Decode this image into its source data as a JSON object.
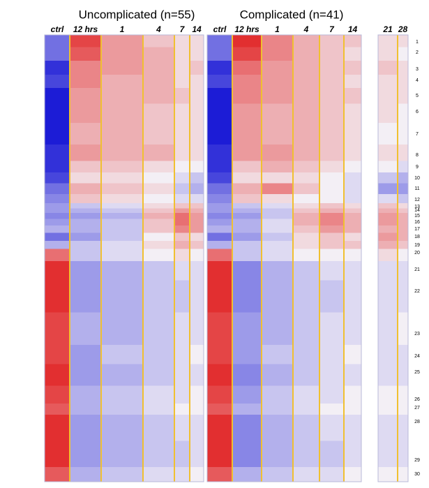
{
  "chart_data": {
    "type": "heatmap",
    "zlim": [
      -1,
      1
    ],
    "colors": [
      "#1c1cd6",
      "#f3eff5",
      "#e01a1a"
    ],
    "rows": [
      1,
      2,
      3,
      4,
      5,
      6,
      7,
      8,
      9,
      10,
      11,
      12,
      13,
      14,
      15,
      16,
      17,
      18,
      19,
      20,
      21,
      22,
      23,
      24,
      25,
      26,
      27,
      28,
      29,
      30
    ],
    "panels": [
      {
        "title": "Uncomplicated (n=55)",
        "columns": [
          "ctrl",
          "12 hrs",
          "1",
          "4",
          "7",
          "14"
        ],
        "values": [
          [
            -0.6,
            0.8,
            0.4,
            0.2,
            0.1,
            0.1
          ],
          [
            -0.6,
            0.7,
            0.4,
            0.3,
            0.1,
            0.1
          ],
          [
            -0.9,
            0.5,
            0.4,
            0.3,
            0.1,
            0.2
          ],
          [
            -0.8,
            0.5,
            0.3,
            0.3,
            0.1,
            0.1
          ],
          [
            -1,
            0.4,
            0.3,
            0.3,
            0.2,
            0.1
          ],
          [
            -1,
            0.4,
            0.3,
            0.2,
            0.1,
            0.1
          ],
          [
            -1,
            0.3,
            0.3,
            0.2,
            0.1,
            0.1
          ],
          [
            -0.9,
            0.4,
            0.3,
            0.3,
            0.1,
            0.1
          ],
          [
            -0.9,
            0.2,
            0.2,
            0.1,
            0,
            0
          ],
          [
            -0.8,
            0.1,
            0.1,
            0,
            -0.1,
            -0.2
          ],
          [
            -0.6,
            0.3,
            0.2,
            0.1,
            -0.2,
            -0.3
          ],
          [
            -0.5,
            0.2,
            0.1,
            0,
            -0.1,
            -0.1
          ],
          [
            -0.4,
            -0.2,
            -0.1,
            0.1,
            0.2,
            0.2
          ],
          [
            -0.4,
            -0.3,
            -0.2,
            0.2,
            0.4,
            0.3
          ],
          [
            -0.5,
            -0.4,
            -0.3,
            0.3,
            0.6,
            0.4
          ],
          [
            -0.4,
            -0.3,
            -0.2,
            0.2,
            0.6,
            0.4
          ],
          [
            -0.3,
            -0.3,
            -0.2,
            0.2,
            0.5,
            0.4
          ],
          [
            -0.6,
            -0.4,
            -0.2,
            0,
            0.2,
            0.1
          ],
          [
            -0.3,
            -0.2,
            -0.1,
            0.1,
            0.3,
            0.2
          ],
          [
            0.6,
            -0.2,
            -0.1,
            0,
            0.1,
            0
          ],
          [
            0.9,
            -0.4,
            -0.3,
            -0.2,
            -0.1,
            -0.1
          ],
          [
            0.9,
            -0.4,
            -0.3,
            -0.2,
            -0.2,
            -0.1
          ],
          [
            0.8,
            -0.3,
            -0.3,
            -0.2,
            -0.1,
            -0.1
          ],
          [
            0.8,
            -0.4,
            -0.2,
            -0.2,
            -0.1,
            0
          ],
          [
            0.9,
            -0.4,
            -0.3,
            -0.2,
            -0.1,
            -0.1
          ],
          [
            0.8,
            -0.3,
            -0.2,
            -0.1,
            -0.1,
            0
          ],
          [
            0.7,
            -0.3,
            -0.2,
            -0.1,
            0,
            0
          ],
          [
            0.9,
            -0.4,
            -0.3,
            -0.2,
            -0.1,
            -0.1
          ],
          [
            0.9,
            -0.4,
            -0.3,
            -0.2,
            -0.2,
            -0.1
          ],
          [
            0.7,
            -0.3,
            -0.2,
            -0.1,
            -0.1,
            0
          ]
        ]
      },
      {
        "title": "Complicated (n=41)",
        "columns": [
          "ctrl",
          "12 hrs",
          "1",
          "4",
          "7",
          "14"
        ],
        "values": [
          [
            -0.6,
            0.9,
            0.5,
            0.3,
            0.2,
            0.2
          ],
          [
            -0.6,
            0.8,
            0.5,
            0.3,
            0.2,
            0.1
          ],
          [
            -0.9,
            0.6,
            0.4,
            0.3,
            0.2,
            0.2
          ],
          [
            -0.8,
            0.5,
            0.4,
            0.3,
            0.2,
            0.1
          ],
          [
            -1,
            0.5,
            0.4,
            0.3,
            0.2,
            0.2
          ],
          [
            -1,
            0.4,
            0.3,
            0.3,
            0.2,
            0.1
          ],
          [
            -1,
            0.4,
            0.3,
            0.3,
            0.2,
            0.1
          ],
          [
            -0.9,
            0.4,
            0.4,
            0.3,
            0.2,
            0.1
          ],
          [
            -0.9,
            0.2,
            0.3,
            0.2,
            0.1,
            0
          ],
          [
            -0.8,
            0.1,
            0.1,
            0.1,
            0,
            -0.1
          ],
          [
            -0.6,
            0.3,
            0.5,
            0.2,
            0,
            -0.1
          ],
          [
            -0.5,
            0.2,
            0.1,
            0,
            0,
            -0.1
          ],
          [
            -0.4,
            -0.2,
            -0.1,
            0.1,
            0.2,
            0.1
          ],
          [
            -0.4,
            -0.3,
            -0.2,
            0.2,
            0.3,
            0.2
          ],
          [
            -0.5,
            -0.4,
            -0.2,
            0.3,
            0.5,
            0.3
          ],
          [
            -0.4,
            -0.3,
            -0.1,
            0.3,
            0.5,
            0.3
          ],
          [
            -0.3,
            -0.3,
            -0.1,
            0.2,
            0.4,
            0.3
          ],
          [
            -0.6,
            -0.4,
            -0.2,
            0.1,
            0.2,
            0.1
          ],
          [
            -0.3,
            -0.2,
            -0.1,
            0.1,
            0.2,
            0.2
          ],
          [
            0.6,
            -0.2,
            -0.1,
            0,
            0,
            0
          ],
          [
            0.9,
            -0.5,
            -0.3,
            -0.2,
            -0.1,
            -0.1
          ],
          [
            0.9,
            -0.5,
            -0.3,
            -0.2,
            -0.2,
            -0.1
          ],
          [
            0.8,
            -0.4,
            -0.3,
            -0.2,
            -0.1,
            -0.1
          ],
          [
            0.8,
            -0.4,
            -0.2,
            -0.2,
            -0.1,
            0
          ],
          [
            0.9,
            -0.5,
            -0.3,
            -0.2,
            -0.1,
            -0.1
          ],
          [
            0.8,
            -0.4,
            -0.2,
            -0.1,
            -0.1,
            0
          ],
          [
            0.7,
            -0.3,
            -0.2,
            -0.1,
            0,
            0
          ],
          [
            0.9,
            -0.5,
            -0.3,
            -0.2,
            -0.1,
            -0.1
          ],
          [
            0.9,
            -0.5,
            -0.3,
            -0.2,
            -0.2,
            -0.1
          ],
          [
            0.7,
            -0.3,
            -0.2,
            -0.1,
            -0.1,
            0
          ]
        ]
      },
      {
        "columns": [
          "21",
          "28"
        ],
        "values": [
          [
            0.1,
            0.1
          ],
          [
            0.1,
            0
          ],
          [
            0.2,
            0.1
          ],
          [
            0.1,
            0.1
          ],
          [
            0.1,
            0.1
          ],
          [
            0.1,
            0
          ],
          [
            0,
            0
          ],
          [
            0.1,
            0.1
          ],
          [
            0,
            -0.1
          ],
          [
            -0.2,
            -0.3
          ],
          [
            -0.4,
            -0.4
          ],
          [
            -0.1,
            -0.2
          ],
          [
            0.2,
            0.1
          ],
          [
            0.3,
            0.2
          ],
          [
            0.4,
            0.3
          ],
          [
            0.4,
            0.3
          ],
          [
            0.3,
            0.3
          ],
          [
            0.4,
            0.3
          ],
          [
            0.3,
            0.2
          ],
          [
            0.1,
            0
          ],
          [
            -0.1,
            -0.1
          ],
          [
            -0.1,
            -0.1
          ],
          [
            -0.1,
            0
          ],
          [
            -0.1,
            -0.1
          ],
          [
            -0.1,
            -0.1
          ],
          [
            0,
            0
          ],
          [
            0,
            0
          ],
          [
            -0.1,
            -0.1
          ],
          [
            -0.1,
            -0.1
          ],
          [
            0,
            0
          ]
        ]
      }
    ]
  }
}
